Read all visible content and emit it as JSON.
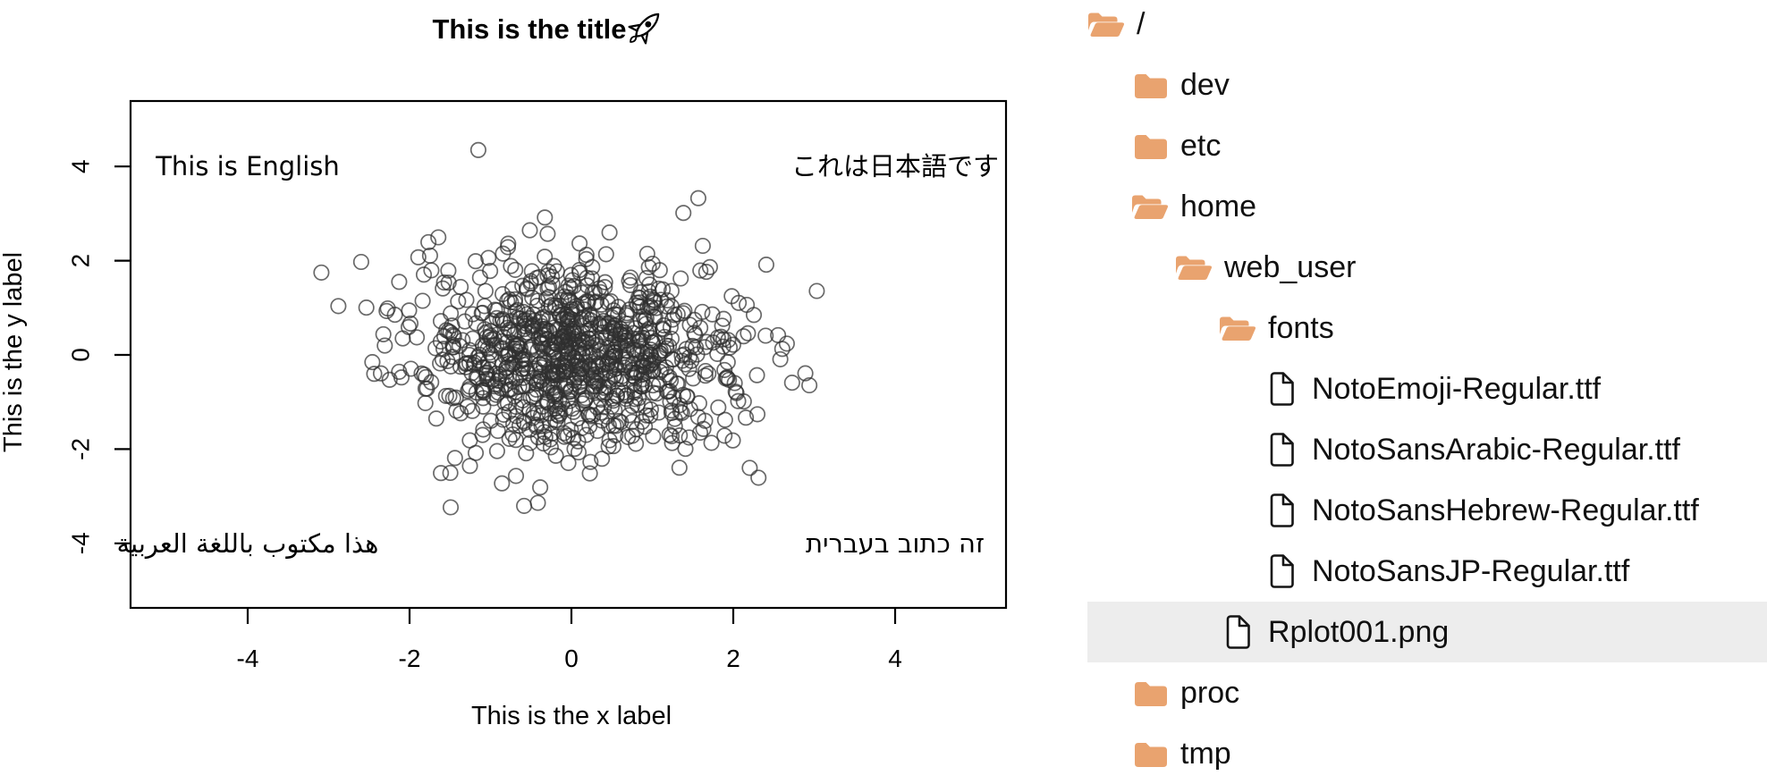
{
  "chart_data": {
    "type": "scatter",
    "title": "This is the title 🚀",
    "title_text": "This is the title",
    "title_icon": "rocket-emoji",
    "xlabel": "This is the x label",
    "ylabel": "This is the y label",
    "x_ticks": [
      -4,
      -2,
      0,
      2,
      4
    ],
    "y_ticks": [
      -4,
      -2,
      0,
      2,
      4
    ],
    "xlim": [
      -5.4,
      5.4
    ],
    "ylim": [
      -5.4,
      5.4
    ],
    "grid": false,
    "marker": "open-circle",
    "points": {
      "n": 1000,
      "distribution": "bivariate-normal",
      "mean": [
        0,
        0
      ],
      "sd": [
        1,
        1
      ],
      "seed": 12345
    },
    "extra_points": [
      [
        -1.15,
        4.35
      ]
    ],
    "annotations": [
      {
        "text": "This is English",
        "x": -4,
        "y": 4,
        "lang": "en"
      },
      {
        "text": "これは日本語です",
        "x": 4,
        "y": 4,
        "lang": "ja"
      },
      {
        "text": "هذا مكتوب باللغة العربية",
        "x": -4,
        "y": -4,
        "lang": "ar"
      },
      {
        "text": "זה כתוב בעברית",
        "x": 4,
        "y": -4,
        "lang": "he"
      }
    ]
  },
  "tree": {
    "items": [
      {
        "label": "/",
        "depth": 0,
        "icon": "folder-open",
        "selected": false
      },
      {
        "label": "dev",
        "depth": 1,
        "icon": "folder",
        "selected": false
      },
      {
        "label": "etc",
        "depth": 1,
        "icon": "folder",
        "selected": false
      },
      {
        "label": "home",
        "depth": 1,
        "icon": "folder-open",
        "selected": false
      },
      {
        "label": "web_user",
        "depth": 2,
        "icon": "folder-open",
        "selected": false
      },
      {
        "label": "fonts",
        "depth": 3,
        "icon": "folder-open",
        "selected": false
      },
      {
        "label": "NotoEmoji-Regular.ttf",
        "depth": 4,
        "icon": "file",
        "selected": false
      },
      {
        "label": "NotoSansArabic-Regular.ttf",
        "depth": 4,
        "icon": "file",
        "selected": false
      },
      {
        "label": "NotoSansHebrew-Regular.ttf",
        "depth": 4,
        "icon": "file",
        "selected": false
      },
      {
        "label": "NotoSansJP-Regular.ttf",
        "depth": 4,
        "icon": "file",
        "selected": false
      },
      {
        "label": "Rplot001.png",
        "depth": 3,
        "icon": "file",
        "selected": true
      },
      {
        "label": "proc",
        "depth": 1,
        "icon": "folder",
        "selected": false
      },
      {
        "label": "tmp",
        "depth": 1,
        "icon": "folder",
        "selected": false
      }
    ]
  },
  "colors": {
    "folder": "#e9a36f",
    "selection": "#ededed",
    "point_stroke": "#2f2f2f",
    "axis": "#000000"
  }
}
